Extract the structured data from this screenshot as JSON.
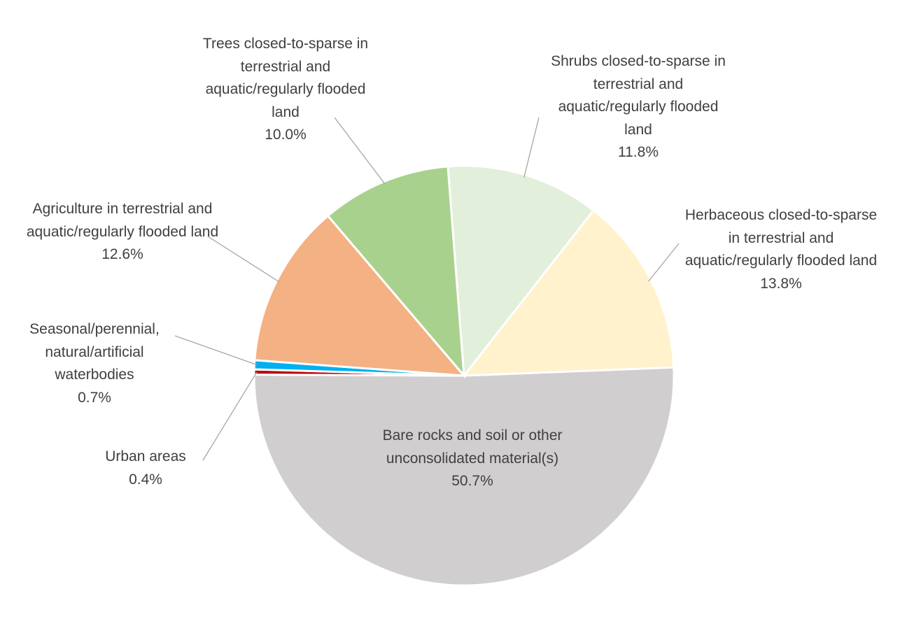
{
  "chart_data": {
    "type": "pie",
    "categories": [
      "Shrubs closed-to-sparse in terrestrial and aquatic/regularly flooded land",
      "Herbaceous closed-to-sparse in terrestrial and aquatic/regularly flooded land",
      "Bare rocks and soil or other unconsolidated material(s)",
      "Urban areas",
      "Seasonal/perennial, natural/artificial waterbodies",
      "Agriculture in terrestrial and aquatic/regularly flooded land",
      "Trees closed-to-sparse in terrestrial and aquatic/regularly flooded land"
    ],
    "values": [
      11.8,
      13.8,
      50.7,
      0.4,
      0.7,
      12.6,
      10.0
    ],
    "value_labels": [
      "11.8%",
      "13.8%",
      "50.7%",
      "0.4%",
      "0.7%",
      "12.6%",
      "10.0%"
    ],
    "colors": [
      "#e2efda",
      "#fff2cc",
      "#d0cece",
      "#c00000",
      "#00b0f0",
      "#f4b183",
      "#a9d18e"
    ]
  }
}
